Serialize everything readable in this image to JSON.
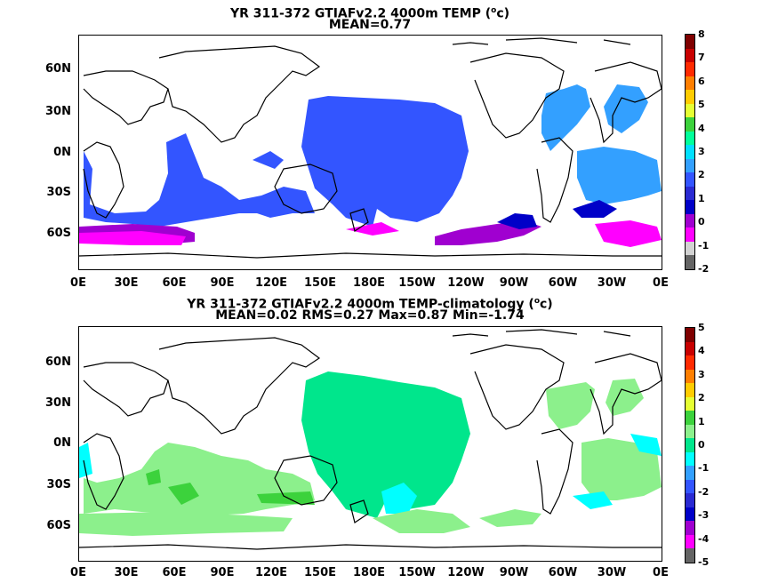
{
  "panels": [
    {
      "title_line1": "YR 311-372 GTIAFv2.2 4000m TEMP (",
      "title_unit_sup": "o",
      "title_unit": "c)",
      "title_line2": "MEAN=0.77",
      "colorbar_labels": [
        "8",
        "7",
        "6",
        "5",
        "4",
        "3",
        "2",
        "1",
        "0",
        "-1",
        "-2"
      ],
      "colorbar_colors": [
        "#7f0000",
        "#c80000",
        "#ff2a00",
        "#ff7f00",
        "#ffcc00",
        "#e6ff33",
        "#3cd23c",
        "#00ff9a",
        "#00e0ff",
        "#33a0ff",
        "#3355ff",
        "#2a2ad2",
        "#0000c8",
        "#a000d0",
        "#ff00ff",
        "#d2d2d2",
        "#646464"
      ],
      "regions": [
        {
          "color": "#3355ff",
          "name": "north-pacific"
        },
        {
          "color": "#3355ff",
          "name": "indian-ocean"
        },
        {
          "color": "#33a0ff",
          "name": "atlantic"
        },
        {
          "color": "#a000d0",
          "name": "southern-ocean"
        },
        {
          "color": "#ff00ff",
          "name": "southern-ocean-cold"
        }
      ]
    },
    {
      "title_line1": "YR 311-372 GTIAFv2.2 4000m TEMP-climatology (",
      "title_unit_sup": "o",
      "title_unit": "c)",
      "title_line2": "MEAN=0.02   RMS=0.27   Max=0.87   Min=-1.74",
      "colorbar_labels": [
        "5",
        "4",
        "3",
        "2",
        "1",
        "0",
        "-1",
        "-2",
        "-3",
        "-4",
        "-5"
      ],
      "colorbar_colors": [
        "#7f0000",
        "#c80000",
        "#ff2a00",
        "#ff7f00",
        "#ffcc00",
        "#e6ff33",
        "#3cd23c",
        "#8cf08c",
        "#00e68c",
        "#00ffff",
        "#33a0ff",
        "#3355ff",
        "#2a2ad2",
        "#0000c8",
        "#a000d0",
        "#ff00ff",
        "#646464"
      ]
    }
  ],
  "lat_labels": [
    "60N",
    "30N",
    "0N",
    "30S",
    "60S"
  ],
  "lon_labels": [
    "0E",
    "30E",
    "60E",
    "90E",
    "120E",
    "150E",
    "180E",
    "150W",
    "120W",
    "90W",
    "60W",
    "30W",
    "0E"
  ]
}
